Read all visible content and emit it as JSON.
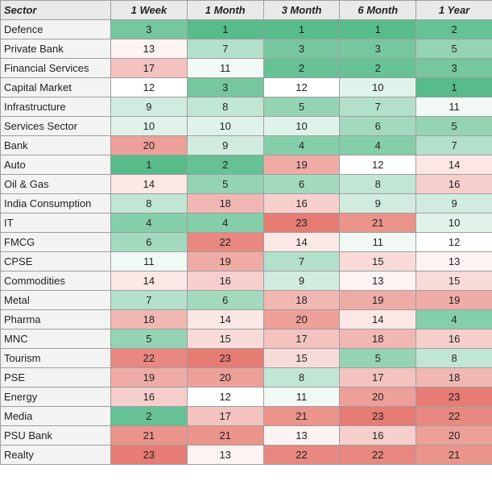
{
  "chart_data": {
    "type": "table",
    "title": "",
    "columns": [
      "Sector",
      "1 Week",
      "1 Month",
      "3 Month",
      "6 Month",
      "1 Year"
    ],
    "rows": [
      {
        "sector": "Defence",
        "values": [
          3,
          1,
          1,
          1,
          2
        ]
      },
      {
        "sector": "Private Bank",
        "values": [
          13,
          7,
          3,
          3,
          5
        ]
      },
      {
        "sector": "Financial Services",
        "values": [
          17,
          11,
          2,
          2,
          3
        ]
      },
      {
        "sector": "Capital Market",
        "values": [
          12,
          3,
          12,
          10,
          1
        ]
      },
      {
        "sector": "Infrastructure",
        "values": [
          9,
          8,
          5,
          7,
          11
        ]
      },
      {
        "sector": "Services Sector",
        "values": [
          10,
          10,
          10,
          6,
          5
        ]
      },
      {
        "sector": "Bank",
        "values": [
          20,
          9,
          4,
          4,
          7
        ]
      },
      {
        "sector": "Auto",
        "values": [
          1,
          2,
          19,
          12,
          14
        ]
      },
      {
        "sector": "Oil & Gas",
        "values": [
          14,
          5,
          6,
          8,
          16
        ]
      },
      {
        "sector": "India Consumption",
        "values": [
          8,
          18,
          16,
          9,
          9
        ]
      },
      {
        "sector": "IT",
        "values": [
          4,
          4,
          23,
          21,
          10
        ]
      },
      {
        "sector": "FMCG",
        "values": [
          6,
          22,
          14,
          11,
          12
        ]
      },
      {
        "sector": "CPSE",
        "values": [
          11,
          19,
          7,
          15,
          13
        ]
      },
      {
        "sector": "Commodities",
        "values": [
          14,
          16,
          9,
          13,
          15
        ]
      },
      {
        "sector": "Metal",
        "values": [
          7,
          6,
          18,
          19,
          19
        ]
      },
      {
        "sector": "Pharma",
        "values": [
          18,
          14,
          20,
          14,
          4
        ]
      },
      {
        "sector": "MNC",
        "values": [
          5,
          15,
          17,
          18,
          16
        ]
      },
      {
        "sector": "Tourism",
        "values": [
          22,
          23,
          15,
          5,
          8
        ]
      },
      {
        "sector": "PSE",
        "values": [
          19,
          20,
          8,
          17,
          18
        ]
      },
      {
        "sector": "Energy",
        "values": [
          16,
          12,
          11,
          20,
          23
        ]
      },
      {
        "sector": "Media",
        "values": [
          2,
          17,
          21,
          23,
          22
        ]
      },
      {
        "sector": "PSU Bank",
        "values": [
          21,
          21,
          13,
          16,
          20
        ]
      },
      {
        "sector": "Realty",
        "values": [
          23,
          13,
          22,
          22,
          21
        ]
      }
    ],
    "color_scale": {
      "best_color": "#57bb8a",
      "mid_color": "#ffffff",
      "worst_color": "#e67c73",
      "best_rank": 1,
      "mid_rank": 12,
      "worst_rank": 23
    }
  }
}
